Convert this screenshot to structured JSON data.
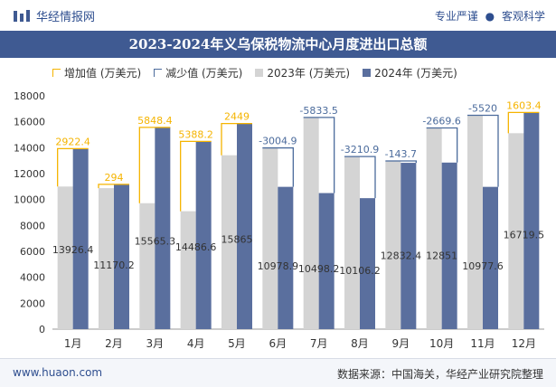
{
  "header": {
    "brand": "华经情报网",
    "tag1": "专业严谨",
    "dot": "●",
    "tag2": "客观科学"
  },
  "title": "2023-2024年义乌保税物流中心月度进出口总额",
  "legend": {
    "inc": "增加值 (万美元)",
    "dec": "减少值 (万美元)",
    "y2023": "2023年 (万美元)",
    "y2024": "2024年 (万美元)"
  },
  "footer": {
    "left": "www.huaon.com",
    "right": "数据来源：中国海关，华经产业研究院整理"
  },
  "colors": {
    "bar2023": "#d4d4d4",
    "bar2024": "#5a6f9e",
    "increase": "#f5b400",
    "decrease": "#4b6b9c",
    "title_band": "#3f5a92"
  },
  "chart_data": {
    "type": "bar",
    "categories": [
      "1月",
      "2月",
      "3月",
      "4月",
      "5月",
      "6月",
      "7月",
      "8月",
      "9月",
      "10月",
      "11月",
      "12月"
    ],
    "ylim": [
      0,
      18000
    ],
    "yticks": [
      0,
      2000,
      4000,
      6000,
      8000,
      10000,
      12000,
      14000,
      16000,
      18000
    ],
    "series": [
      {
        "name": "2023年 (万美元)",
        "values": [
          11004,
          10876,
          9717,
          9098,
          13416,
          13984,
          16332,
          13317,
          12976,
          15521,
          16498,
          15116
        ]
      },
      {
        "name": "2024年 (万美元)",
        "values": [
          13926.4,
          11170.2,
          15565.3,
          14486.6,
          15865,
          10978.9,
          10498.2,
          10106.2,
          12832.4,
          12851,
          10977.6,
          16719.5
        ]
      }
    ],
    "bar_labels_2024": [
      "13926.4",
      "11170.2",
      "15565.3",
      "14486.6",
      "15865",
      "10978.9",
      "10498.2",
      "10106.2",
      "12832.4",
      "12851",
      "10977.6",
      "16719.5"
    ],
    "change_labels": [
      "2922.4",
      "294",
      "5848.4",
      "5388.2",
      "2449",
      "-3004.9",
      "-5833.5",
      "-3210.9",
      "-143.7",
      "-2669.6",
      "-5520",
      "1603.4"
    ],
    "grid": false,
    "legend_position": "top"
  }
}
